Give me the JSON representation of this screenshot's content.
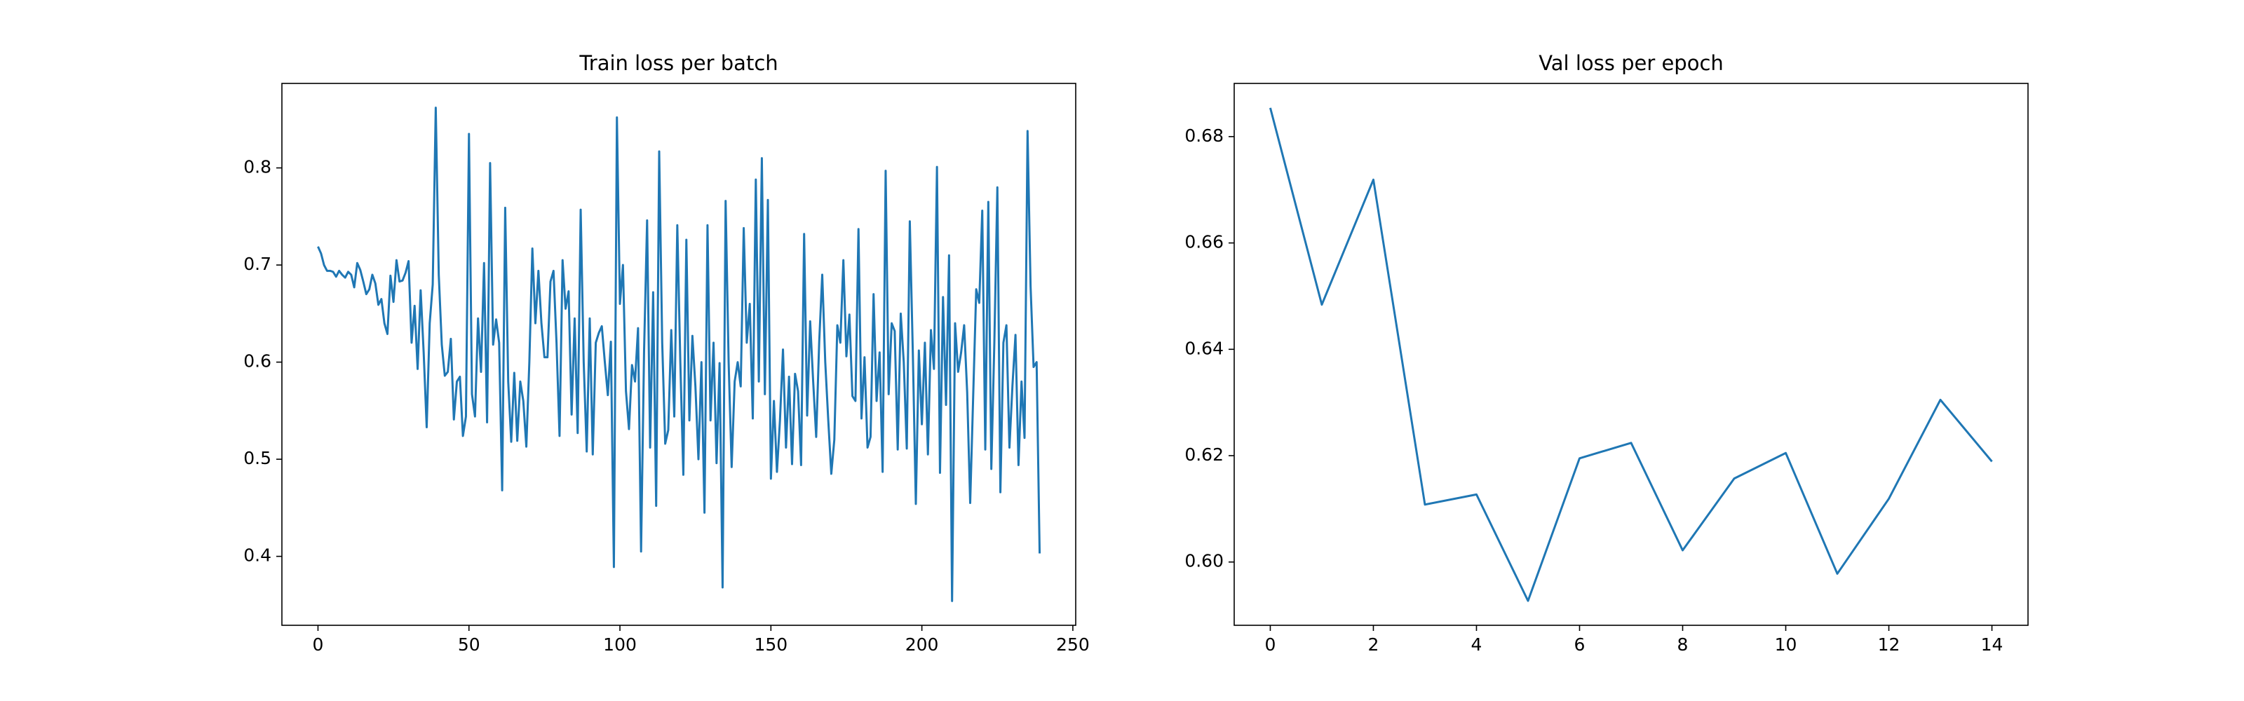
{
  "chart_data": [
    {
      "type": "line",
      "title": "Train loss per batch",
      "x": [
        0,
        1,
        2,
        3,
        4,
        5,
        6,
        7,
        8,
        9,
        10,
        11,
        12,
        13,
        14,
        15,
        16,
        17,
        18,
        19,
        20,
        21,
        22,
        23,
        24,
        25,
        26,
        27,
        28,
        29,
        30,
        31,
        32,
        33,
        34,
        35,
        36,
        37,
        38,
        39,
        40,
        41,
        42,
        43,
        44,
        45,
        46,
        47,
        48,
        49,
        50,
        51,
        52,
        53,
        54,
        55,
        56,
        57,
        58,
        59,
        60,
        61,
        62,
        63,
        64,
        65,
        66,
        67,
        68,
        69,
        70,
        71,
        72,
        73,
        74,
        75,
        76,
        77,
        78,
        79,
        80,
        81,
        82,
        83,
        84,
        85,
        86,
        87,
        88,
        89,
        90,
        91,
        92,
        93,
        94,
        95,
        96,
        97,
        98,
        99,
        100,
        101,
        102,
        103,
        104,
        105,
        106,
        107,
        108,
        109,
        110,
        111,
        112,
        113,
        114,
        115,
        116,
        117,
        118,
        119,
        120,
        121,
        122,
        123,
        124,
        125,
        126,
        127,
        128,
        129,
        130,
        131,
        132,
        133,
        134,
        135,
        136,
        137,
        138,
        139,
        140,
        141,
        142,
        143,
        144,
        145,
        146,
        147,
        148,
        149,
        150,
        151,
        152,
        153,
        154,
        155,
        156,
        157,
        158,
        159,
        160,
        161,
        162,
        163,
        164,
        165,
        166,
        167,
        168,
        169,
        170,
        171,
        172,
        173,
        174,
        175,
        176,
        177,
        178,
        179,
        180,
        181,
        182,
        183,
        184,
        185,
        186,
        187,
        188,
        189,
        190,
        191,
        192,
        193,
        194,
        195,
        196,
        197,
        198,
        199,
        200,
        201,
        202,
        203,
        204,
        205,
        206,
        207,
        208,
        209,
        210,
        211,
        212,
        213,
        214,
        215,
        216,
        217,
        218,
        219,
        220,
        221,
        222,
        223,
        224,
        225,
        226,
        227,
        228,
        229,
        230,
        231,
        232,
        233,
        234,
        235,
        236,
        237,
        238,
        239
      ],
      "series": [
        {
          "color": "#1f77b4",
          "values": [
            0.719,
            0.712,
            0.7,
            0.694,
            0.694,
            0.693,
            0.688,
            0.694,
            0.69,
            0.687,
            0.693,
            0.69,
            0.677,
            0.702,
            0.695,
            0.683,
            0.67,
            0.675,
            0.69,
            0.681,
            0.659,
            0.665,
            0.64,
            0.629,
            0.689,
            0.662,
            0.705,
            0.683,
            0.684,
            0.692,
            0.704,
            0.62,
            0.658,
            0.593,
            0.674,
            0.61,
            0.533,
            0.64,
            0.68,
            0.862,
            0.69,
            0.618,
            0.586,
            0.59,
            0.624,
            0.541,
            0.58,
            0.585,
            0.524,
            0.544,
            0.835,
            0.567,
            0.544,
            0.645,
            0.59,
            0.702,
            0.538,
            0.805,
            0.618,
            0.644,
            0.62,
            0.468,
            0.759,
            0.58,
            0.518,
            0.589,
            0.519,
            0.58,
            0.56,
            0.513,
            0.6,
            0.717,
            0.64,
            0.694,
            0.64,
            0.605,
            0.605,
            0.683,
            0.694,
            0.62,
            0.524,
            0.705,
            0.655,
            0.673,
            0.546,
            0.645,
            0.527,
            0.757,
            0.6,
            0.508,
            0.645,
            0.505,
            0.62,
            0.63,
            0.637,
            0.6,
            0.566,
            0.621,
            0.389,
            0.852,
            0.66,
            0.7,
            0.57,
            0.531,
            0.597,
            0.58,
            0.635,
            0.405,
            0.612,
            0.746,
            0.512,
            0.672,
            0.452,
            0.817,
            0.62,
            0.516,
            0.53,
            0.633,
            0.544,
            0.741,
            0.6,
            0.484,
            0.726,
            0.54,
            0.627,
            0.575,
            0.5,
            0.6,
            0.445,
            0.741,
            0.54,
            0.62,
            0.496,
            0.599,
            0.368,
            0.766,
            0.6,
            0.492,
            0.58,
            0.6,
            0.575,
            0.738,
            0.62,
            0.66,
            0.542,
            0.788,
            0.58,
            0.81,
            0.567,
            0.767,
            0.48,
            0.56,
            0.487,
            0.54,
            0.613,
            0.512,
            0.585,
            0.495,
            0.588,
            0.57,
            0.494,
            0.732,
            0.545,
            0.642,
            0.58,
            0.523,
            0.621,
            0.69,
            0.6,
            0.54,
            0.485,
            0.52,
            0.638,
            0.62,
            0.705,
            0.606,
            0.649,
            0.565,
            0.56,
            0.737,
            0.542,
            0.605,
            0.512,
            0.523,
            0.67,
            0.56,
            0.61,
            0.487,
            0.797,
            0.567,
            0.64,
            0.632,
            0.51,
            0.65,
            0.6,
            0.511,
            0.745,
            0.61,
            0.454,
            0.612,
            0.536,
            0.62,
            0.505,
            0.633,
            0.593,
            0.801,
            0.486,
            0.667,
            0.556,
            0.71,
            0.354,
            0.64,
            0.59,
            0.61,
            0.638,
            0.569,
            0.455,
            0.566,
            0.675,
            0.661,
            0.756,
            0.51,
            0.765,
            0.49,
            0.62,
            0.78,
            0.466,
            0.62,
            0.638,
            0.512,
            0.576,
            0.628,
            0.494,
            0.58,
            0.522,
            0.838,
            0.678,
            0.595,
            0.6,
            0.403
          ]
        }
      ],
      "xlim": [
        -11.95,
        250.95
      ],
      "xticks": [
        0,
        50,
        100,
        150,
        200,
        250
      ],
      "ylim": [
        0.329,
        0.887
      ],
      "yticks": [
        0.4,
        0.5,
        0.6,
        0.7,
        0.8
      ]
    },
    {
      "type": "line",
      "title": "Val loss per epoch",
      "x": [
        0,
        1,
        2,
        3,
        4,
        5,
        6,
        7,
        8,
        9,
        10,
        11,
        12,
        13,
        14
      ],
      "series": [
        {
          "color": "#1f77b4",
          "values": [
            0.6854,
            0.6484,
            0.6719,
            0.6108,
            0.6127,
            0.5927,
            0.6195,
            0.6224,
            0.6022,
            0.6157,
            0.6205,
            0.5978,
            0.6119,
            0.6305,
            0.6189
          ]
        }
      ],
      "xlim": [
        -0.7,
        14.7
      ],
      "xticks": [
        0,
        2,
        4,
        6,
        8,
        10,
        12,
        14
      ],
      "ylim": [
        0.5881,
        0.69
      ],
      "yticks": [
        {
          "value": 0.6,
          "label": "0.60"
        },
        {
          "value": 0.62,
          "label": "0.62"
        },
        {
          "value": 0.64,
          "label": "0.64"
        },
        {
          "value": 0.66,
          "label": "0.66"
        },
        {
          "value": 0.68,
          "label": "0.68"
        }
      ]
    }
  ]
}
